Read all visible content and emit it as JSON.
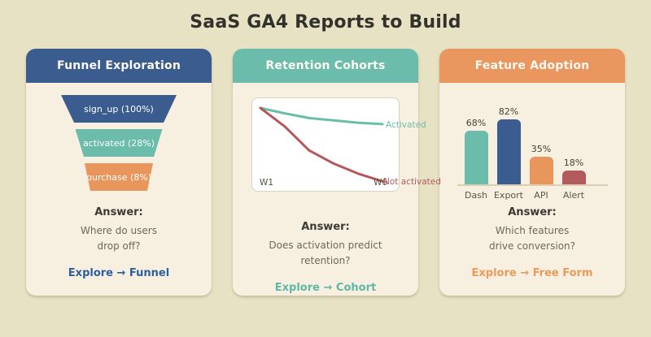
{
  "page": {
    "title": "SaaS GA4 Reports to Build",
    "background_color": "#e7e2c3",
    "card_background_color": "#f7f0e1"
  },
  "cards": [
    {
      "header": "Funnel Exploration",
      "accent": "#3b5c8e",
      "answer_label": "Answer:",
      "question_lines": [
        "Where do users",
        "drop off?"
      ],
      "explore_label": "Explore → Funnel",
      "explore_color": "#2d5f9e"
    },
    {
      "header": "Retention Cohorts",
      "accent": "#6bbcab",
      "answer_label": "Answer:",
      "question_lines": [
        "Does activation predict",
        "retention?"
      ],
      "explore_label": "Explore → Cohort",
      "explore_color": "#5fb7a5"
    },
    {
      "header": "Feature Adoption",
      "accent": "#e9975f",
      "answer_label": "Answer:",
      "question_lines": [
        "Which features",
        "drive conversion?"
      ],
      "explore_label": "Explore → Free Form",
      "explore_color": "#ec9a5a"
    }
  ],
  "chart_data": [
    {
      "type": "funnel",
      "title": "Funnel Exploration",
      "steps": [
        {
          "label": "sign_up (100%)",
          "value": 100,
          "color": "#3b5c8e"
        },
        {
          "label": "activated (28%)",
          "value": 28,
          "color": "#6bbcab"
        },
        {
          "label": "purchase (8%)",
          "value": 8,
          "color": "#e9965c"
        }
      ]
    },
    {
      "type": "line",
      "title": "Retention Cohorts",
      "x_labels": [
        "W1",
        "W6"
      ],
      "series": [
        {
          "name": "Activated",
          "color": "#6bbcab",
          "values": [
            100,
            93,
            87,
            84,
            81,
            79
          ]
        },
        {
          "name": "Not activated",
          "color": "#b5585c",
          "values": [
            100,
            76,
            45,
            28,
            15,
            5
          ]
        }
      ],
      "ylim": [
        0,
        100
      ],
      "grid": false,
      "legend_position": "line-end-labels"
    },
    {
      "type": "bar",
      "title": "Feature Adoption",
      "categories": [
        "Dash",
        "Export",
        "API",
        "Alert"
      ],
      "values": [
        68,
        82,
        35,
        18
      ],
      "value_labels": [
        "68%",
        "82%",
        "35%",
        "18%"
      ],
      "colors": [
        "#6bbcab",
        "#3b5c8e",
        "#e9965c",
        "#b25a5e"
      ],
      "ylim": [
        0,
        100
      ]
    }
  ]
}
